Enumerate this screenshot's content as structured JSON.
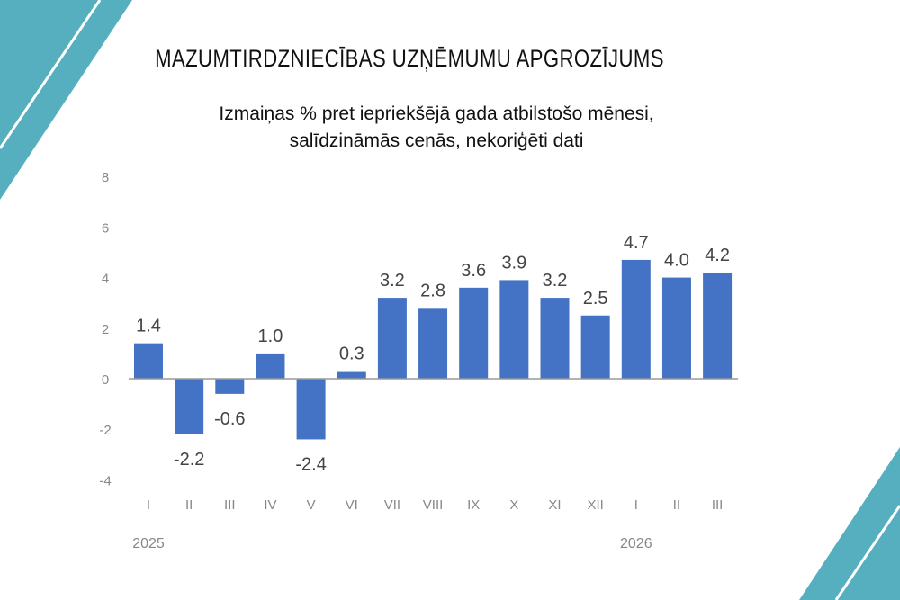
{
  "title": "MAZUMTIRDZNIECĪBAS UZŅĒMUMU APGROZĪJUMS",
  "subtitle_line1": "Izmaiņas % pret iepriekšējā gada atbilstošo mēnesi,",
  "subtitle_line2": "salīdzināmās cenās, nekoriģēti dati",
  "colors": {
    "bar": "#4472C4",
    "decoration": "#56AFBF",
    "axis_text": "#888888",
    "label_text": "#444444"
  },
  "chart_data": {
    "type": "bar",
    "categories": [
      "I",
      "II",
      "III",
      "IV",
      "V",
      "VI",
      "VII",
      "VIII",
      "IX",
      "X",
      "XI",
      "XII",
      "I",
      "II",
      "III"
    ],
    "year_labels": [
      {
        "index": 0,
        "label": "2025"
      },
      {
        "index": 12,
        "label": "2026"
      }
    ],
    "values": [
      1.4,
      -2.2,
      -0.6,
      1.0,
      -2.4,
      0.3,
      3.2,
      2.8,
      3.6,
      3.9,
      3.2,
      2.5,
      4.7,
      4.0,
      4.2
    ],
    "data_labels": [
      "1.4",
      "-2.2",
      "-0.6",
      "1.0",
      "-2.4",
      "0.3",
      "3.2",
      "2.8",
      "3.6",
      "3.9",
      "3.2",
      "2.5",
      "4.7",
      "4.0",
      "4.2"
    ],
    "yticks": [
      "8",
      "6",
      "4",
      "2",
      "0",
      "-2",
      "-4"
    ],
    "ylim": [
      -4,
      8
    ],
    "grid": false,
    "title": "MAZUMTIRDZNIECĪBAS UZŅĒMUMU APGROZĪJUMS",
    "xlabel": "",
    "ylabel": ""
  }
}
